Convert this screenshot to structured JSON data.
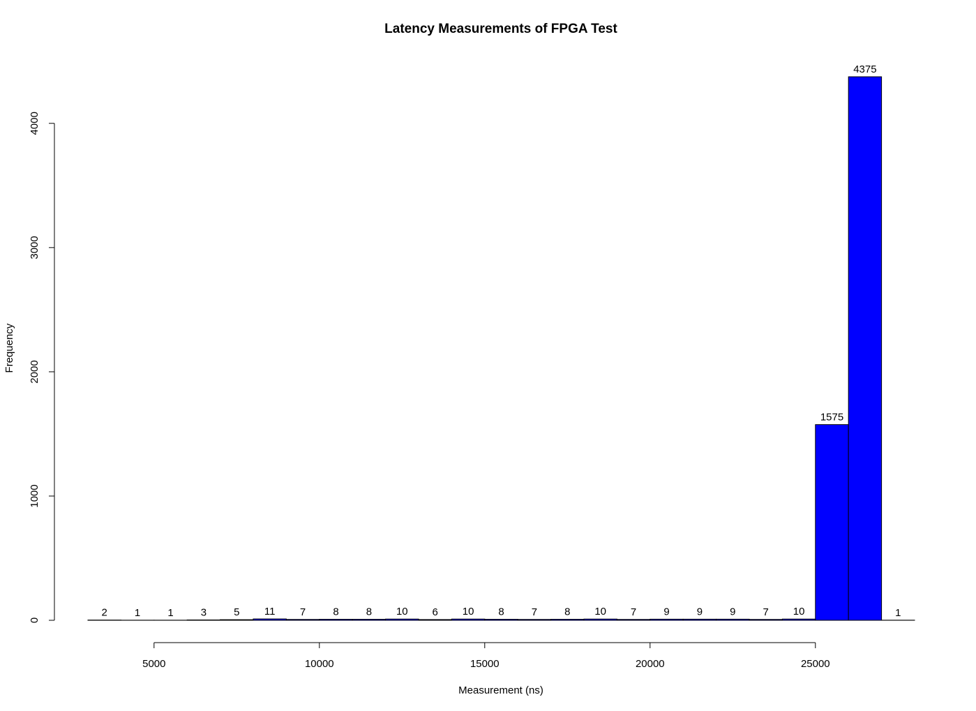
{
  "chart_data": {
    "type": "bar",
    "title": "Latency Measurements of FPGA Test",
    "xlabel": "Measurement (ns)",
    "ylabel": "Frequency",
    "bin_width": 1000,
    "bins": [
      {
        "start": 3000,
        "end": 4000,
        "count": 2
      },
      {
        "start": 4000,
        "end": 5000,
        "count": 1
      },
      {
        "start": 5000,
        "end": 6000,
        "count": 1
      },
      {
        "start": 6000,
        "end": 7000,
        "count": 3
      },
      {
        "start": 7000,
        "end": 8000,
        "count": 5
      },
      {
        "start": 8000,
        "end": 9000,
        "count": 11
      },
      {
        "start": 9000,
        "end": 10000,
        "count": 7
      },
      {
        "start": 10000,
        "end": 11000,
        "count": 8
      },
      {
        "start": 11000,
        "end": 12000,
        "count": 8
      },
      {
        "start": 12000,
        "end": 13000,
        "count": 10
      },
      {
        "start": 13000,
        "end": 14000,
        "count": 6
      },
      {
        "start": 14000,
        "end": 15000,
        "count": 10
      },
      {
        "start": 15000,
        "end": 16000,
        "count": 8
      },
      {
        "start": 16000,
        "end": 17000,
        "count": 7
      },
      {
        "start": 17000,
        "end": 18000,
        "count": 8
      },
      {
        "start": 18000,
        "end": 19000,
        "count": 10
      },
      {
        "start": 19000,
        "end": 20000,
        "count": 7
      },
      {
        "start": 20000,
        "end": 21000,
        "count": 9
      },
      {
        "start": 21000,
        "end": 22000,
        "count": 9
      },
      {
        "start": 22000,
        "end": 23000,
        "count": 9
      },
      {
        "start": 23000,
        "end": 24000,
        "count": 7
      },
      {
        "start": 24000,
        "end": 25000,
        "count": 10
      },
      {
        "start": 25000,
        "end": 26000,
        "count": 1575
      },
      {
        "start": 26000,
        "end": 27000,
        "count": 4375
      },
      {
        "start": 27000,
        "end": 28000,
        "count": 1
      }
    ],
    "xlim": [
      3000,
      28000
    ],
    "ylim": [
      0,
      4375
    ],
    "x_ticks": [
      5000,
      10000,
      15000,
      20000,
      25000
    ],
    "y_ticks": [
      0,
      1000,
      2000,
      3000,
      4000
    ],
    "bar_color": "#0000ff",
    "bar_border_color": "#000000",
    "grid": false,
    "legend": "none"
  }
}
